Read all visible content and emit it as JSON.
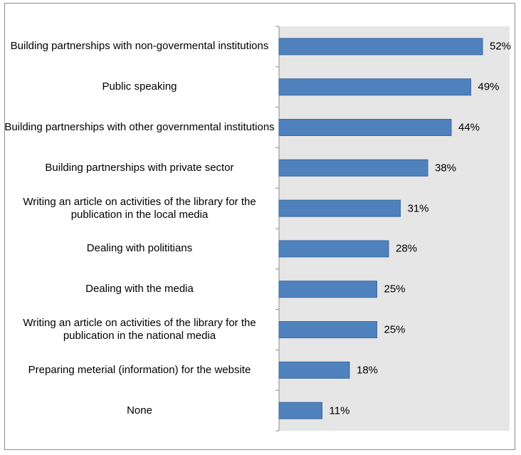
{
  "chart_data": {
    "type": "bar",
    "orientation": "horizontal",
    "categories": [
      "Building partnerships with non-govermental institutions",
      "Public speaking",
      "Building partnerships with other governmental institutions",
      "Building partnerships with private sector",
      "Writing an article on activities of the library for the publication in the local media",
      "Dealing with polititians",
      "Dealing with the media",
      "Writing an article on activities of the library for the publication in the national media",
      "Preparing meterial (information) for the website",
      "None"
    ],
    "values": [
      52,
      49,
      44,
      38,
      31,
      28,
      25,
      25,
      18,
      11
    ],
    "value_labels": [
      "52%",
      "49%",
      "44%",
      "38%",
      "31%",
      "28%",
      "25%",
      "25%",
      "18%",
      "11%"
    ],
    "xlim": [
      0,
      60
    ],
    "grid": false,
    "legend": "none",
    "colors": {
      "bar": "#4f81bd",
      "bar_edge": "#3a6aa0",
      "plot_bg": "#e6e6e6",
      "axis": "#8c8c8c"
    }
  }
}
